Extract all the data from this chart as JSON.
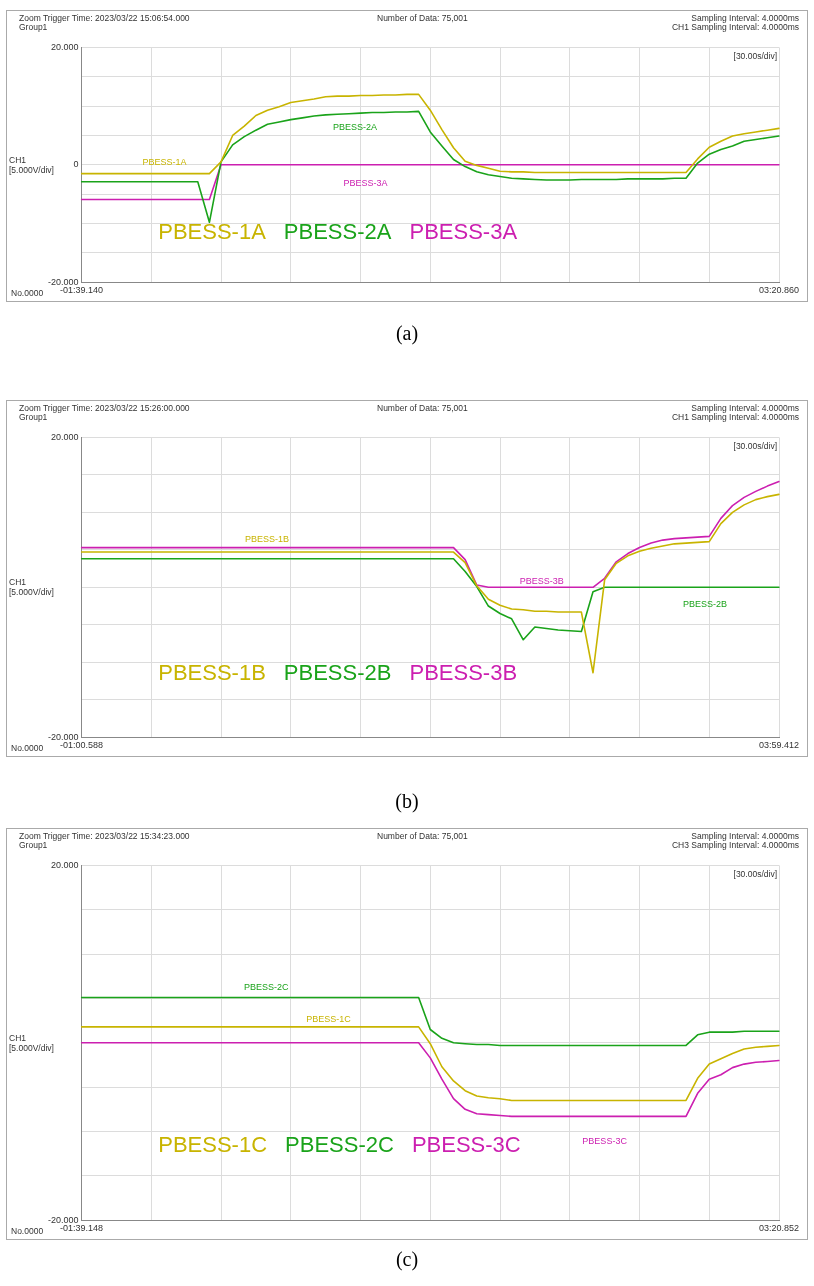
{
  "chart_data": [
    {
      "type": "line",
      "title": "(a)",
      "legend": "bottom left",
      "grid": true,
      "categories": [
        "-01:39.140",
        null,
        null,
        null,
        null,
        null,
        null,
        null,
        null,
        null,
        null,
        null,
        null,
        null,
        null,
        null,
        null,
        null,
        null,
        null,
        null,
        null,
        null,
        null,
        null,
        null,
        null,
        null,
        null,
        null,
        null,
        null,
        null,
        null,
        null,
        null,
        null,
        null,
        null,
        null,
        null,
        null,
        null,
        null,
        null,
        null,
        null,
        null,
        null,
        null,
        null,
        null,
        null,
        null,
        null,
        null,
        null,
        null,
        null,
        null,
        "03:20.860"
      ],
      "ylim": [
        -20,
        20
      ],
      "yticks": [
        {
          "value": 20,
          "label": "20.000"
        },
        {
          "value": 15,
          "label": null
        },
        {
          "value": 10,
          "label": null
        },
        {
          "value": 5,
          "label": null
        },
        0,
        {
          "value": -5,
          "label": null
        },
        {
          "value": -10,
          "label": null
        },
        {
          "value": -15,
          "label": null
        },
        {
          "value": -20,
          "label": "-20.000"
        }
      ],
      "series": [
        {
          "name": "PBESS-1A",
          "color": "#c8b400",
          "values": [
            -1.5,
            -1.5,
            -1.5,
            -1.5,
            -1.5,
            -1.5,
            -1.5,
            -1.5,
            -1.5,
            -1.5,
            -1.5,
            -1.5,
            0.5,
            5,
            6.6,
            8.4,
            9.3,
            9.9,
            10.6,
            10.9,
            11.2,
            11.6,
            11.7,
            11.7,
            11.8,
            11.8,
            11.9,
            11.9,
            12,
            12,
            9.3,
            6,
            2.9,
            0.6,
            -0.1,
            -0.6,
            -1.1,
            -1.2,
            -1.2,
            -1.3,
            -1.3,
            -1.3,
            -1.3,
            -1.3,
            -1.3,
            -1.3,
            -1.3,
            -1.3,
            -1.3,
            -1.3,
            -1.3,
            -1.3,
            -1.3,
            1.0,
            3.0,
            4.0,
            4.9,
            5.3,
            5.6,
            5.9,
            6.2
          ]
        },
        {
          "name": "PBESS-2A",
          "color": "#1aa31a",
          "values": [
            -2.9,
            -2.9,
            -2.9,
            -2.9,
            -2.9,
            -2.9,
            -2.9,
            -2.9,
            -2.9,
            -2.9,
            -2.9,
            -9.8,
            0.5,
            3.4,
            4.8,
            5.9,
            6.9,
            7.3,
            7.7,
            8.0,
            8.3,
            8.5,
            8.6,
            8.7,
            8.8,
            8.9,
            8.9,
            9.0,
            9.0,
            9.1,
            5.6,
            3.2,
            0.9,
            -0.3,
            -1.2,
            -1.7,
            -2.0,
            -2.3,
            -2.4,
            -2.5,
            -2.6,
            -2.6,
            -2.6,
            -2.5,
            -2.5,
            -2.5,
            -2.5,
            -2.4,
            -2.4,
            -2.4,
            -2.4,
            -2.3,
            -2.3,
            0.3,
            1.8,
            2.6,
            3.2,
            4.0,
            4.3,
            4.6,
            4.9
          ]
        },
        {
          "name": "PBESS-3A",
          "color": "#cc1fb0",
          "values": [
            -5.9,
            -5.9,
            -5.9,
            -5.9,
            -5.9,
            -5.9,
            -5.9,
            -5.9,
            -5.9,
            -5.9,
            -5.9,
            -5.9,
            0,
            0,
            0,
            0,
            0,
            0,
            0,
            0,
            0,
            0,
            0,
            0,
            0,
            0,
            0,
            0,
            0,
            0,
            0,
            0,
            0,
            0,
            0,
            0,
            0,
            0,
            0,
            0,
            0,
            0,
            0,
            0,
            0,
            0,
            0,
            0,
            0,
            0,
            0,
            0,
            0,
            0,
            0,
            0,
            0,
            0,
            0,
            0,
            0
          ]
        }
      ],
      "annotations": [
        "Zoom Trigger Time: 2023/03/22 15:06:54.000",
        "Group1",
        "Number of Data: 75,001",
        "Sampling Interval: 4.0000ms",
        "CH1 Sampling Interval: 4.0000ms",
        "[30.00s/div]",
        "CH1",
        "[5.000V/div]",
        "No.0000",
        "PBESS-1A",
        "PBESS-2A",
        "PBESS-3A"
      ]
    },
    {
      "type": "line",
      "title": "(b)",
      "legend": "bottom left",
      "grid": true,
      "categories": [
        "-01:00.588",
        null,
        null,
        null,
        null,
        null,
        null,
        null,
        null,
        null,
        null,
        null,
        null,
        null,
        null,
        null,
        null,
        null,
        null,
        null,
        null,
        null,
        null,
        null,
        null,
        null,
        null,
        null,
        null,
        null,
        null,
        null,
        null,
        null,
        null,
        null,
        null,
        null,
        null,
        null,
        null,
        null,
        null,
        null,
        null,
        null,
        null,
        null,
        null,
        null,
        null,
        null,
        null,
        null,
        null,
        null,
        null,
        null,
        null,
        null,
        "03:59.412"
      ],
      "ylim": [
        -20,
        20
      ],
      "yticks": [
        {
          "value": 20,
          "label": "20.000"
        },
        {
          "value": 15,
          "label": null
        },
        {
          "value": 10,
          "label": null
        },
        {
          "value": 5,
          "label": null
        },
        {
          "value": 0,
          "label": null
        },
        {
          "value": -5,
          "label": null
        },
        {
          "value": -10,
          "label": null
        },
        {
          "value": -15,
          "label": null
        },
        {
          "value": -20,
          "label": "-20.000"
        }
      ],
      "series": [
        {
          "name": "PBESS-1B",
          "color": "#c8b400",
          "values": [
            4.7,
            4.7,
            4.7,
            4.7,
            4.7,
            4.7,
            4.7,
            4.7,
            4.7,
            4.7,
            4.7,
            4.7,
            4.7,
            4.7,
            4.7,
            4.7,
            4.7,
            4.7,
            4.7,
            4.7,
            4.7,
            4.7,
            4.7,
            4.7,
            4.7,
            4.7,
            4.7,
            4.7,
            4.7,
            4.7,
            4.7,
            4.7,
            4.7,
            3.3,
            0.2,
            -1.6,
            -2.4,
            -2.9,
            -3.0,
            -3.2,
            -3.2,
            -3.3,
            -3.3,
            -3.3,
            -11.4,
            1.0,
            3.2,
            4.2,
            4.8,
            5.2,
            5.5,
            5.8,
            5.9,
            6.0,
            6.1,
            8.5,
            10.0,
            11.0,
            11.7,
            12.1,
            12.4
          ]
        },
        {
          "name": "PBESS-2B",
          "color": "#1aa31a",
          "values": [
            3.8,
            3.8,
            3.8,
            3.8,
            3.8,
            3.8,
            3.8,
            3.8,
            3.8,
            3.8,
            3.8,
            3.8,
            3.8,
            3.8,
            3.8,
            3.8,
            3.8,
            3.8,
            3.8,
            3.8,
            3.8,
            3.8,
            3.8,
            3.8,
            3.8,
            3.8,
            3.8,
            3.8,
            3.8,
            3.8,
            3.8,
            3.8,
            3.8,
            2.1,
            0.1,
            -2.5,
            -3.5,
            -4.2,
            -7,
            -5.3,
            -5.5,
            -5.7,
            -5.8,
            -5.9,
            -0.6,
            0,
            0,
            0,
            0,
            0,
            0,
            0,
            0,
            0,
            0,
            0,
            0,
            0,
            0,
            0,
            0
          ]
        },
        {
          "name": "PBESS-3B",
          "color": "#cc1fb0",
          "values": [
            5.3,
            5.3,
            5.3,
            5.3,
            5.3,
            5.3,
            5.3,
            5.3,
            5.3,
            5.3,
            5.3,
            5.3,
            5.3,
            5.3,
            5.3,
            5.3,
            5.3,
            5.3,
            5.3,
            5.3,
            5.3,
            5.3,
            5.3,
            5.3,
            5.3,
            5.3,
            5.3,
            5.3,
            5.3,
            5.3,
            5.3,
            5.3,
            5.3,
            3.7,
            0.3,
            0,
            0,
            0,
            0,
            0,
            0,
            0,
            0,
            0,
            0,
            1.2,
            3.4,
            4.5,
            5.3,
            5.9,
            6.3,
            6.5,
            6.6,
            6.7,
            6.8,
            9.2,
            10.9,
            12.0,
            12.8,
            13.5,
            14.1
          ]
        }
      ],
      "annotations": [
        "Zoom Trigger Time: 2023/03/22 15:26:00.000",
        "Group1",
        "Number of Data: 75,001",
        "Sampling Interval: 4.0000ms",
        "CH1 Sampling Interval: 4.0000ms",
        "[30.00s/div]",
        "CH1",
        "[5.000V/div]",
        "No.0000",
        "PBESS-1B",
        "PBESS-3B",
        "PBESS-2B"
      ]
    },
    {
      "type": "line",
      "title": "(c)",
      "legend": "bottom left",
      "grid": true,
      "categories": [
        "-01:39.148",
        null,
        null,
        null,
        null,
        null,
        null,
        null,
        null,
        null,
        null,
        null,
        null,
        null,
        null,
        null,
        null,
        null,
        null,
        null,
        null,
        null,
        null,
        null,
        null,
        null,
        null,
        null,
        null,
        null,
        null,
        null,
        null,
        null,
        null,
        null,
        null,
        null,
        null,
        null,
        null,
        null,
        null,
        null,
        null,
        null,
        null,
        null,
        null,
        null,
        null,
        null,
        null,
        null,
        null,
        null,
        null,
        null,
        null,
        null,
        "03:20.852"
      ],
      "ylim": [
        -20,
        20
      ],
      "yticks": [
        {
          "value": 20,
          "label": "20.000"
        },
        {
          "value": 15,
          "label": null
        },
        {
          "value": 10,
          "label": null
        },
        {
          "value": 5,
          "label": null
        },
        {
          "value": 0,
          "label": null
        },
        {
          "value": -5,
          "label": null
        },
        {
          "value": -10,
          "label": null
        },
        {
          "value": -15,
          "label": null
        },
        {
          "value": -20,
          "label": "-20.000"
        }
      ],
      "series": [
        {
          "name": "PBESS-1C",
          "color": "#c8b400",
          "values": [
            1.8,
            1.8,
            1.8,
            1.8,
            1.8,
            1.8,
            1.8,
            1.8,
            1.8,
            1.8,
            1.8,
            1.8,
            1.8,
            1.8,
            1.8,
            1.8,
            1.8,
            1.8,
            1.8,
            1.8,
            1.8,
            1.8,
            1.8,
            1.8,
            1.8,
            1.8,
            1.8,
            1.8,
            1.8,
            1.8,
            -0.1,
            -2.7,
            -4.3,
            -5.4,
            -6.0,
            -6.2,
            -6.3,
            -6.5,
            -6.5,
            -6.5,
            -6.5,
            -6.5,
            -6.5,
            -6.5,
            -6.5,
            -6.5,
            -6.5,
            -6.5,
            -6.5,
            -6.5,
            -6.5,
            -6.5,
            -6.5,
            -4.0,
            -2.4,
            -1.8,
            -1.2,
            -0.7,
            -0.5,
            -0.4,
            -0.3
          ]
        },
        {
          "name": "PBESS-2C",
          "color": "#1aa31a",
          "values": [
            5.1,
            5.1,
            5.1,
            5.1,
            5.1,
            5.1,
            5.1,
            5.1,
            5.1,
            5.1,
            5.1,
            5.1,
            5.1,
            5.1,
            5.1,
            5.1,
            5.1,
            5.1,
            5.1,
            5.1,
            5.1,
            5.1,
            5.1,
            5.1,
            5.1,
            5.1,
            5.1,
            5.1,
            5.1,
            5.1,
            1.5,
            0.5,
            0,
            -0.1,
            -0.2,
            -0.2,
            -0.3,
            -0.3,
            -0.3,
            -0.3,
            -0.3,
            -0.3,
            -0.3,
            -0.3,
            -0.3,
            -0.3,
            -0.3,
            -0.3,
            -0.3,
            -0.3,
            -0.3,
            -0.3,
            -0.3,
            0.9,
            1.2,
            1.2,
            1.2,
            1.3,
            1.3,
            1.3,
            1.3
          ]
        },
        {
          "name": "PBESS-3C",
          "color": "#cc1fb0",
          "values": [
            0,
            0,
            0,
            0,
            0,
            0,
            0,
            0,
            0,
            0,
            0,
            0,
            0,
            0,
            0,
            0,
            0,
            0,
            0,
            0,
            0,
            0,
            0,
            0,
            0,
            0,
            0,
            0,
            0,
            0,
            -1.7,
            -4.1,
            -6.3,
            -7.5,
            -8.0,
            -8.1,
            -8.2,
            -8.3,
            -8.3,
            -8.3,
            -8.3,
            -8.3,
            -8.3,
            -8.3,
            -8.3,
            -8.3,
            -8.3,
            -8.3,
            -8.3,
            -8.3,
            -8.3,
            -8.3,
            -8.3,
            -5.7,
            -4.1,
            -3.6,
            -2.8,
            -2.4,
            -2.2,
            -2.1,
            -2.0
          ]
        }
      ],
      "annotations": [
        "Zoom Trigger Time: 2023/03/22 15:34:23.000",
        "Group1",
        "Number of Data: 75,001",
        "Sampling Interval: 4.0000ms",
        "CH3 Sampling Interval: 4.0000ms",
        "[30.00s/div]",
        "CH1",
        "[5.000V/div]",
        "No.0000",
        "PBESS-2C",
        "PBESS-1C",
        "PBESS-3C"
      ]
    }
  ]
}
